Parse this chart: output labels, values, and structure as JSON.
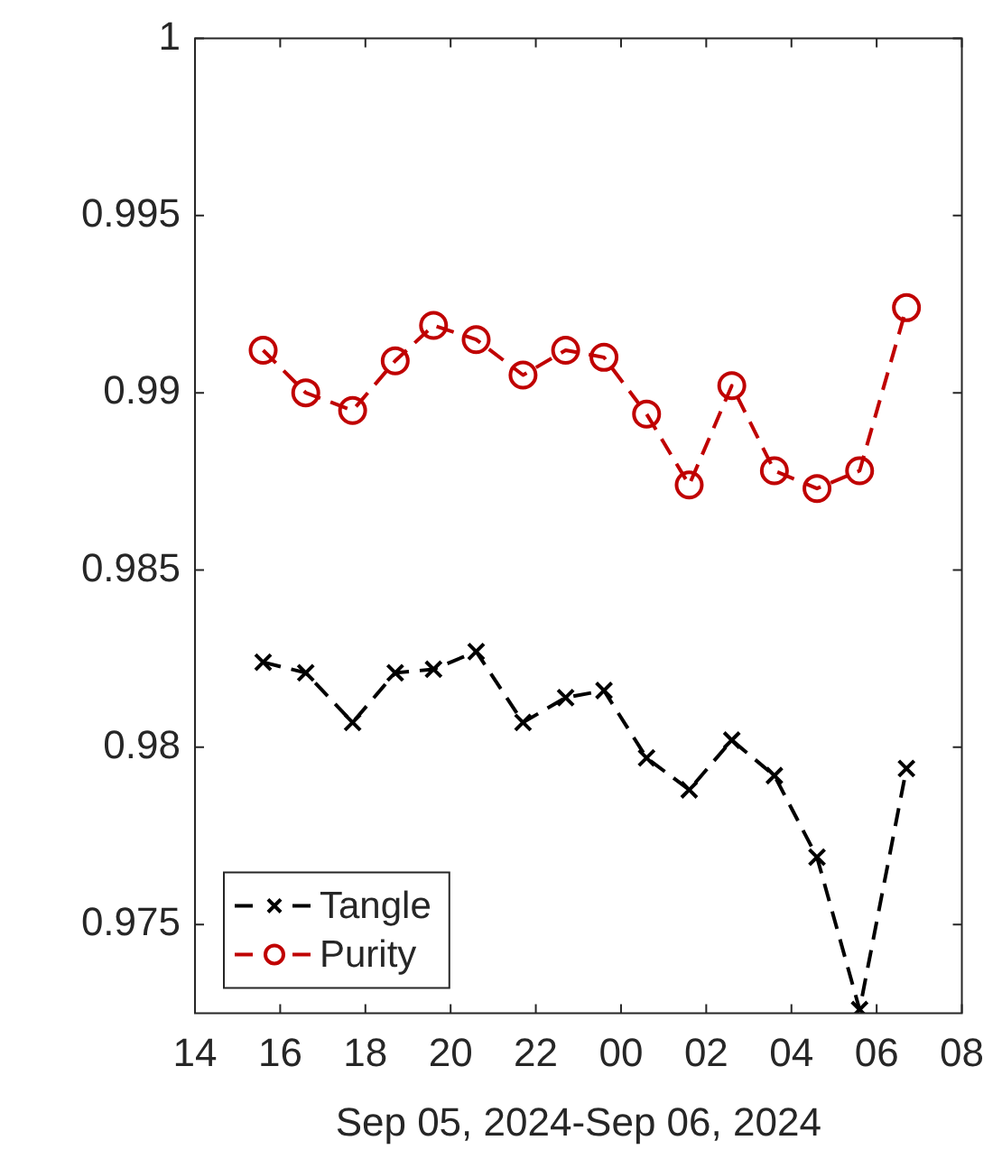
{
  "chart_data": {
    "type": "line",
    "xlabel": "Sep 05, 2024-Sep 06, 2024",
    "x": [
      "2024-09-05T15:36",
      "2024-09-05T16:36",
      "2024-09-05T17:42",
      "2024-09-05T18:42",
      "2024-09-05T19:36",
      "2024-09-05T20:36",
      "2024-09-05T21:42",
      "2024-09-05T22:42",
      "2024-09-05T23:36",
      "2024-09-06T00:36",
      "2024-09-06T01:36",
      "2024-09-06T02:36",
      "2024-09-06T03:36",
      "2024-09-06T04:36",
      "2024-09-06T05:36",
      "2024-09-06T06:42"
    ],
    "series": [
      {
        "name": "Tangle",
        "color": "#000000",
        "marker": "cross",
        "values": [
          0.9824,
          0.9821,
          0.9807,
          0.9821,
          0.9822,
          0.9827,
          0.9807,
          0.9814,
          0.9816,
          0.9797,
          0.9788,
          0.9802,
          0.9792,
          0.9769,
          0.9726,
          0.9794
        ]
      },
      {
        "name": "Purity",
        "color": "#c00000",
        "marker": "circle",
        "values": [
          0.9912,
          0.99,
          0.9895,
          0.9909,
          0.9919,
          0.9915,
          0.9905,
          0.9912,
          0.991,
          0.9894,
          0.9874,
          0.9902,
          0.9878,
          0.9873,
          0.9878,
          0.9924
        ]
      }
    ],
    "xlim": [
      "2024-09-05T14:00",
      "2024-09-06T08:00"
    ],
    "xticks": [
      {
        "value": "2024-09-05T14:00",
        "label": "14"
      },
      {
        "value": "2024-09-05T16:00",
        "label": "16"
      },
      {
        "value": "2024-09-05T18:00",
        "label": "18"
      },
      {
        "value": "2024-09-05T20:00",
        "label": "20"
      },
      {
        "value": "2024-09-05T22:00",
        "label": "22"
      },
      {
        "value": "2024-09-06T00:00",
        "label": "00"
      },
      {
        "value": "2024-09-06T02:00",
        "label": "02"
      },
      {
        "value": "2024-09-06T04:00",
        "label": "04"
      },
      {
        "value": "2024-09-06T06:00",
        "label": "06"
      },
      {
        "value": "2024-09-06T08:00",
        "label": "08"
      }
    ],
    "ylim": [
      0.9725,
      1
    ],
    "yticks": [
      0.975,
      0.98,
      0.985,
      0.99,
      0.995,
      1
    ],
    "grid": false,
    "legend": "bottom left",
    "line_style": "dashed"
  }
}
